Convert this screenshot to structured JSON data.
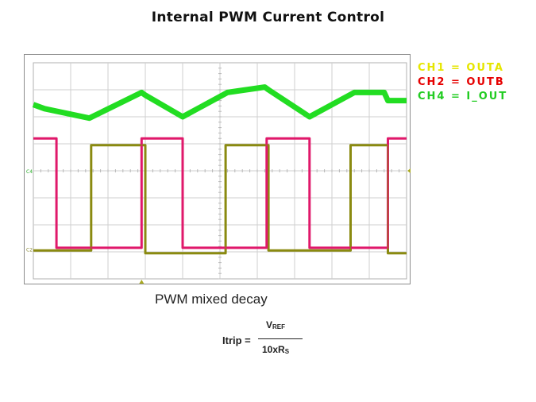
{
  "title": "Internal PWM Current Control",
  "caption": "PWM mixed decay",
  "legend": [
    {
      "text": "CH1 = OUTA",
      "color": "#e6e600"
    },
    {
      "text": "CH2 = OUTB",
      "color": "#e60000"
    },
    {
      "text": "CH4 = I_OUT",
      "color": "#22cc22"
    }
  ],
  "formula": {
    "lhs": "Itrip =",
    "numerator_main": "V",
    "numerator_sub": "REF",
    "denominator_main": "10xR",
    "denominator_sub": "S"
  },
  "chart_data": {
    "type": "line",
    "title": "",
    "xlabel": "",
    "ylabel": "",
    "grid": true,
    "divisions": {
      "x": 10,
      "y": 8
    },
    "xlim": [
      0,
      10
    ],
    "ylim": [
      0,
      8
    ],
    "channel_markers": [
      "C4",
      "C2"
    ],
    "series": [
      {
        "name": "CH4 = I_OUT",
        "color": "#22dd22",
        "x": [
          0,
          0.3,
          1.5,
          2.9,
          3.0,
          4.0,
          5.2,
          6.2,
          6.3,
          7.4,
          8.6,
          9.4,
          9.5,
          10
        ],
        "y": [
          6.45,
          6.3,
          5.95,
          6.9,
          6.8,
          6.0,
          6.9,
          7.1,
          7.0,
          6.0,
          6.9,
          6.9,
          6.6,
          6.6
        ]
      },
      {
        "name": "CH2 = OUTB",
        "color": "#e0196b",
        "x": [
          0,
          0.62,
          0.62,
          2.9,
          2.9,
          4.0,
          4.0,
          6.25,
          6.25,
          7.4,
          7.4,
          9.5,
          9.5,
          10
        ],
        "y": [
          5.2,
          5.2,
          1.15,
          1.15,
          5.2,
          5.2,
          1.15,
          1.15,
          5.2,
          5.2,
          1.15,
          1.15,
          5.2,
          5.2
        ]
      },
      {
        "name": "CH1 = OUTA",
        "color": "#8a8a10",
        "x": [
          0,
          1.55,
          1.55,
          3.0,
          3.0,
          5.15,
          5.15,
          6.3,
          6.3,
          8.5,
          8.5,
          9.5,
          9.5,
          10
        ],
        "y": [
          1.05,
          1.05,
          4.95,
          4.95,
          0.95,
          0.95,
          4.95,
          4.95,
          1.05,
          1.05,
          4.95,
          4.95,
          0.95,
          0.95
        ]
      }
    ]
  }
}
